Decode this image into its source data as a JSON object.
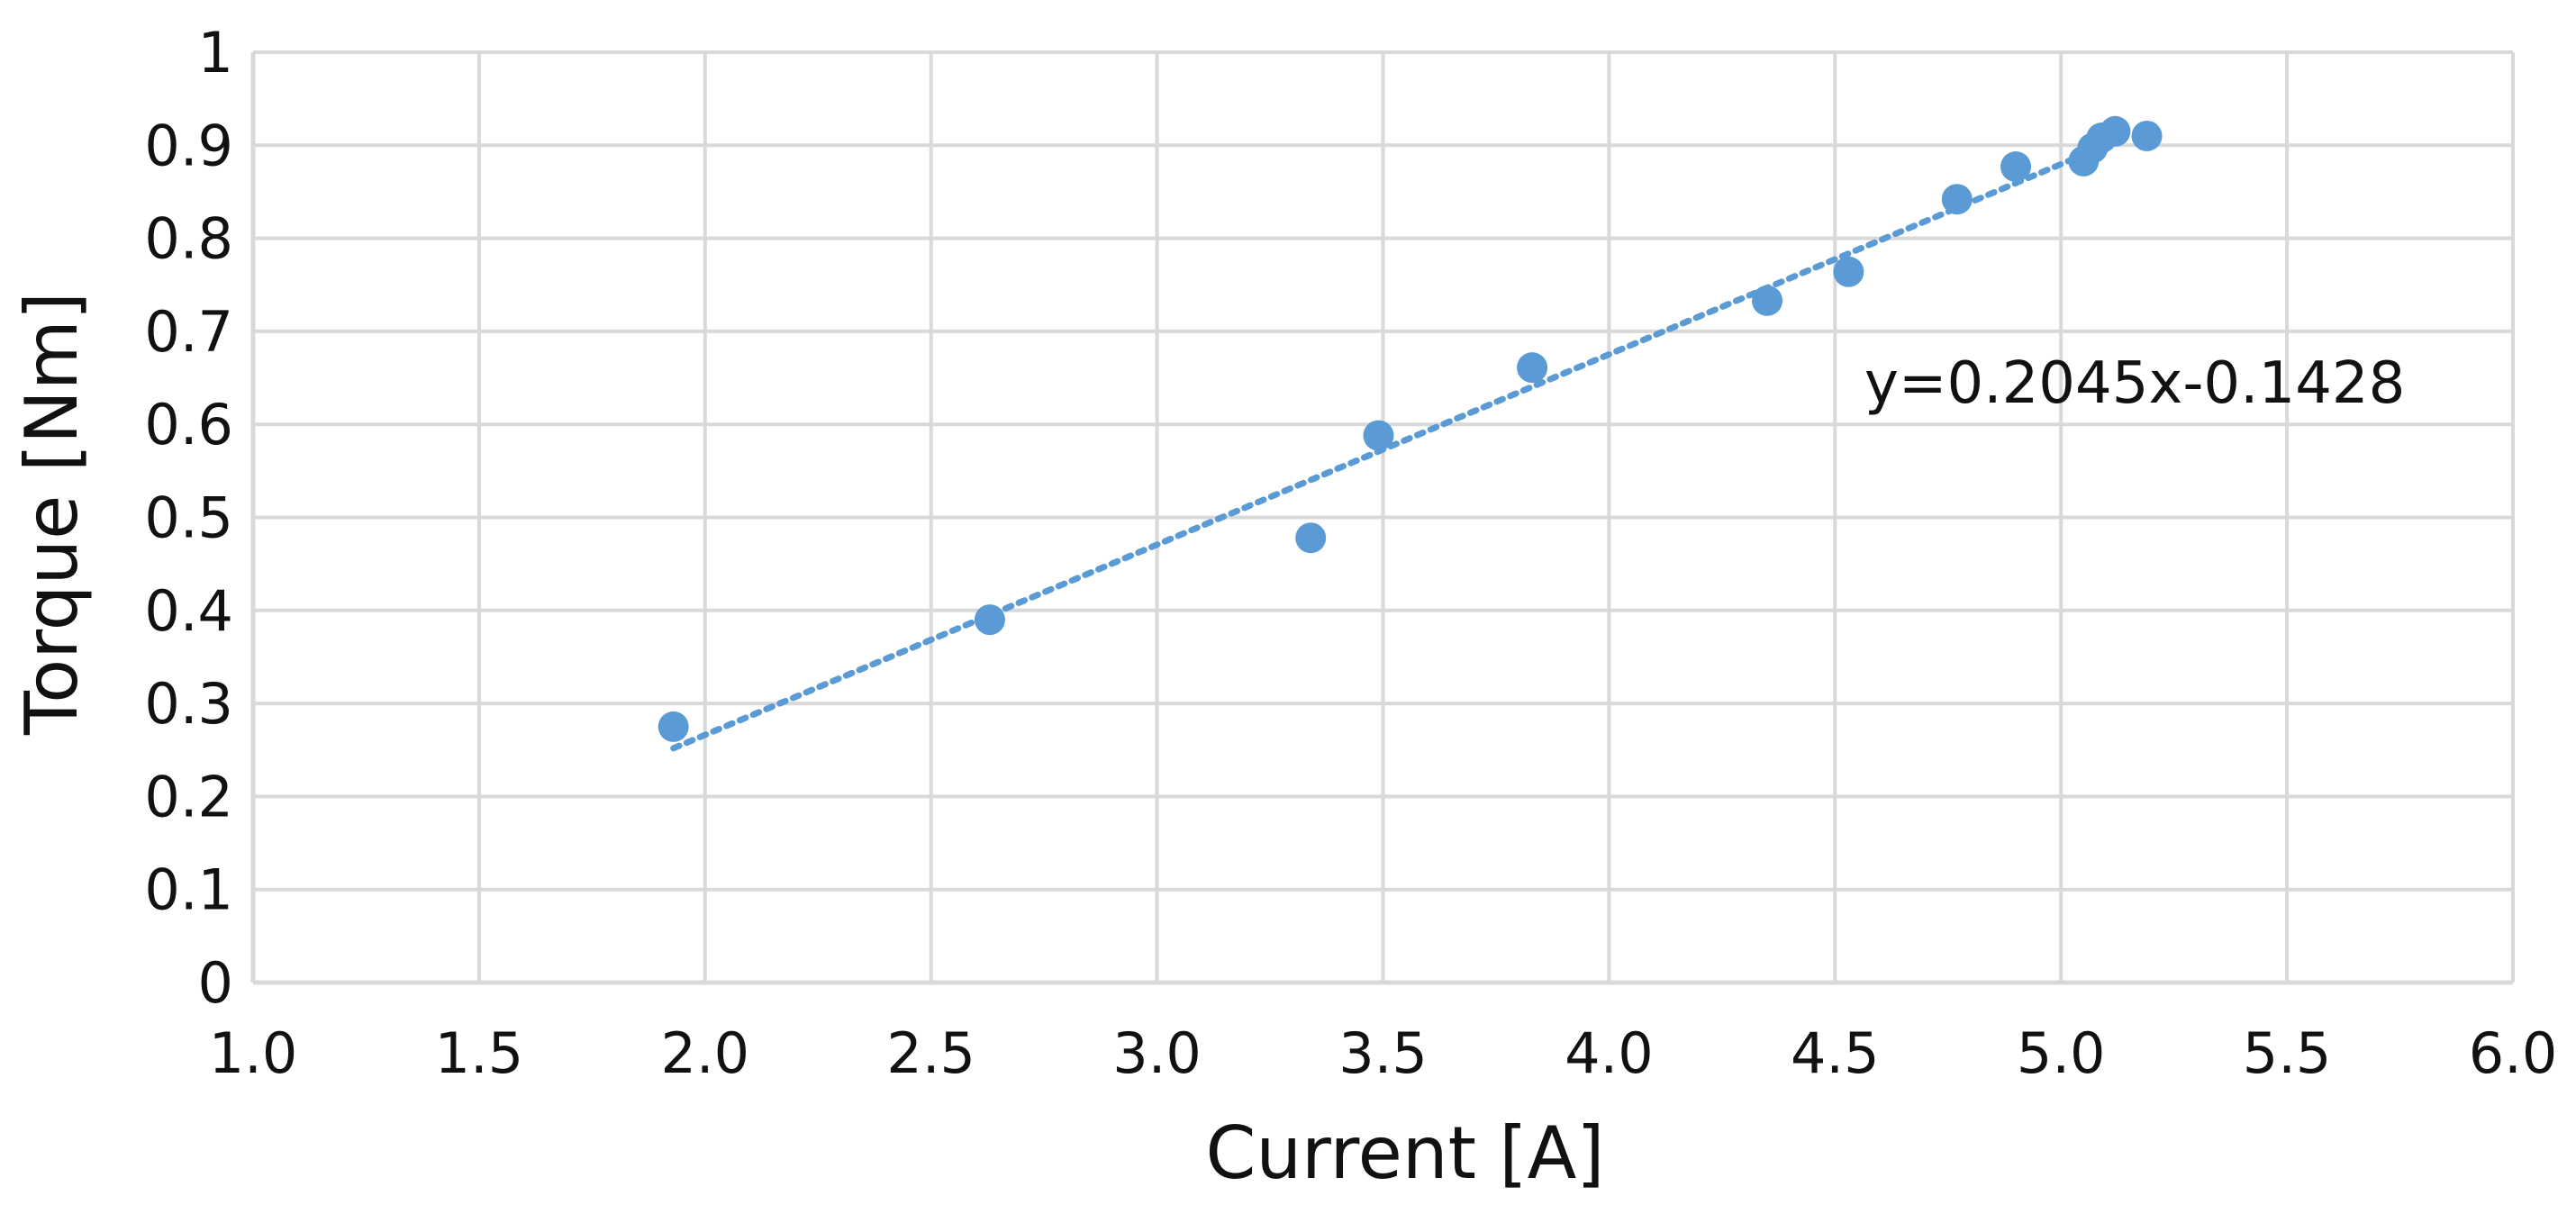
{
  "chart_data": {
    "type": "scatter",
    "xlabel": "Current [A]",
    "ylabel": "Torque [Nm]",
    "xlim": [
      1.0,
      6.0
    ],
    "ylim": [
      0,
      1
    ],
    "x_ticks": [
      "1.0",
      "1.5",
      "2.0",
      "2.5",
      "3.0",
      "3.5",
      "4.0",
      "4.5",
      "5.0",
      "5.5",
      "6.0"
    ],
    "y_ticks": [
      "0",
      "0.1",
      "0.2",
      "0.3",
      "0.4",
      "0.5",
      "0.6",
      "0.7",
      "0.8",
      "0.9",
      "1"
    ],
    "grid": true,
    "legend": "none",
    "series": [
      {
        "color": "#5b9bd5",
        "points": [
          {
            "x": 1.93,
            "y": 0.275
          },
          {
            "x": 2.63,
            "y": 0.39
          },
          {
            "x": 3.34,
            "y": 0.478
          },
          {
            "x": 3.49,
            "y": 0.588
          },
          {
            "x": 3.83,
            "y": 0.661
          },
          {
            "x": 4.35,
            "y": 0.733
          },
          {
            "x": 4.53,
            "y": 0.764
          },
          {
            "x": 4.77,
            "y": 0.842
          },
          {
            "x": 4.9,
            "y": 0.877
          },
          {
            "x": 5.05,
            "y": 0.883
          },
          {
            "x": 5.07,
            "y": 0.897
          },
          {
            "x": 5.09,
            "y": 0.908
          },
          {
            "x": 5.12,
            "y": 0.915
          },
          {
            "x": 5.19,
            "y": 0.91
          }
        ]
      }
    ],
    "trendline": {
      "type": "linear",
      "slope": 0.2045,
      "intercept": -0.1428,
      "x_range": [
        1.93,
        5.12
      ],
      "style": "dotted",
      "color": "#5b9bd5"
    },
    "annotations": [
      {
        "text": "y=0.2045x-0.1428"
      }
    ]
  }
}
